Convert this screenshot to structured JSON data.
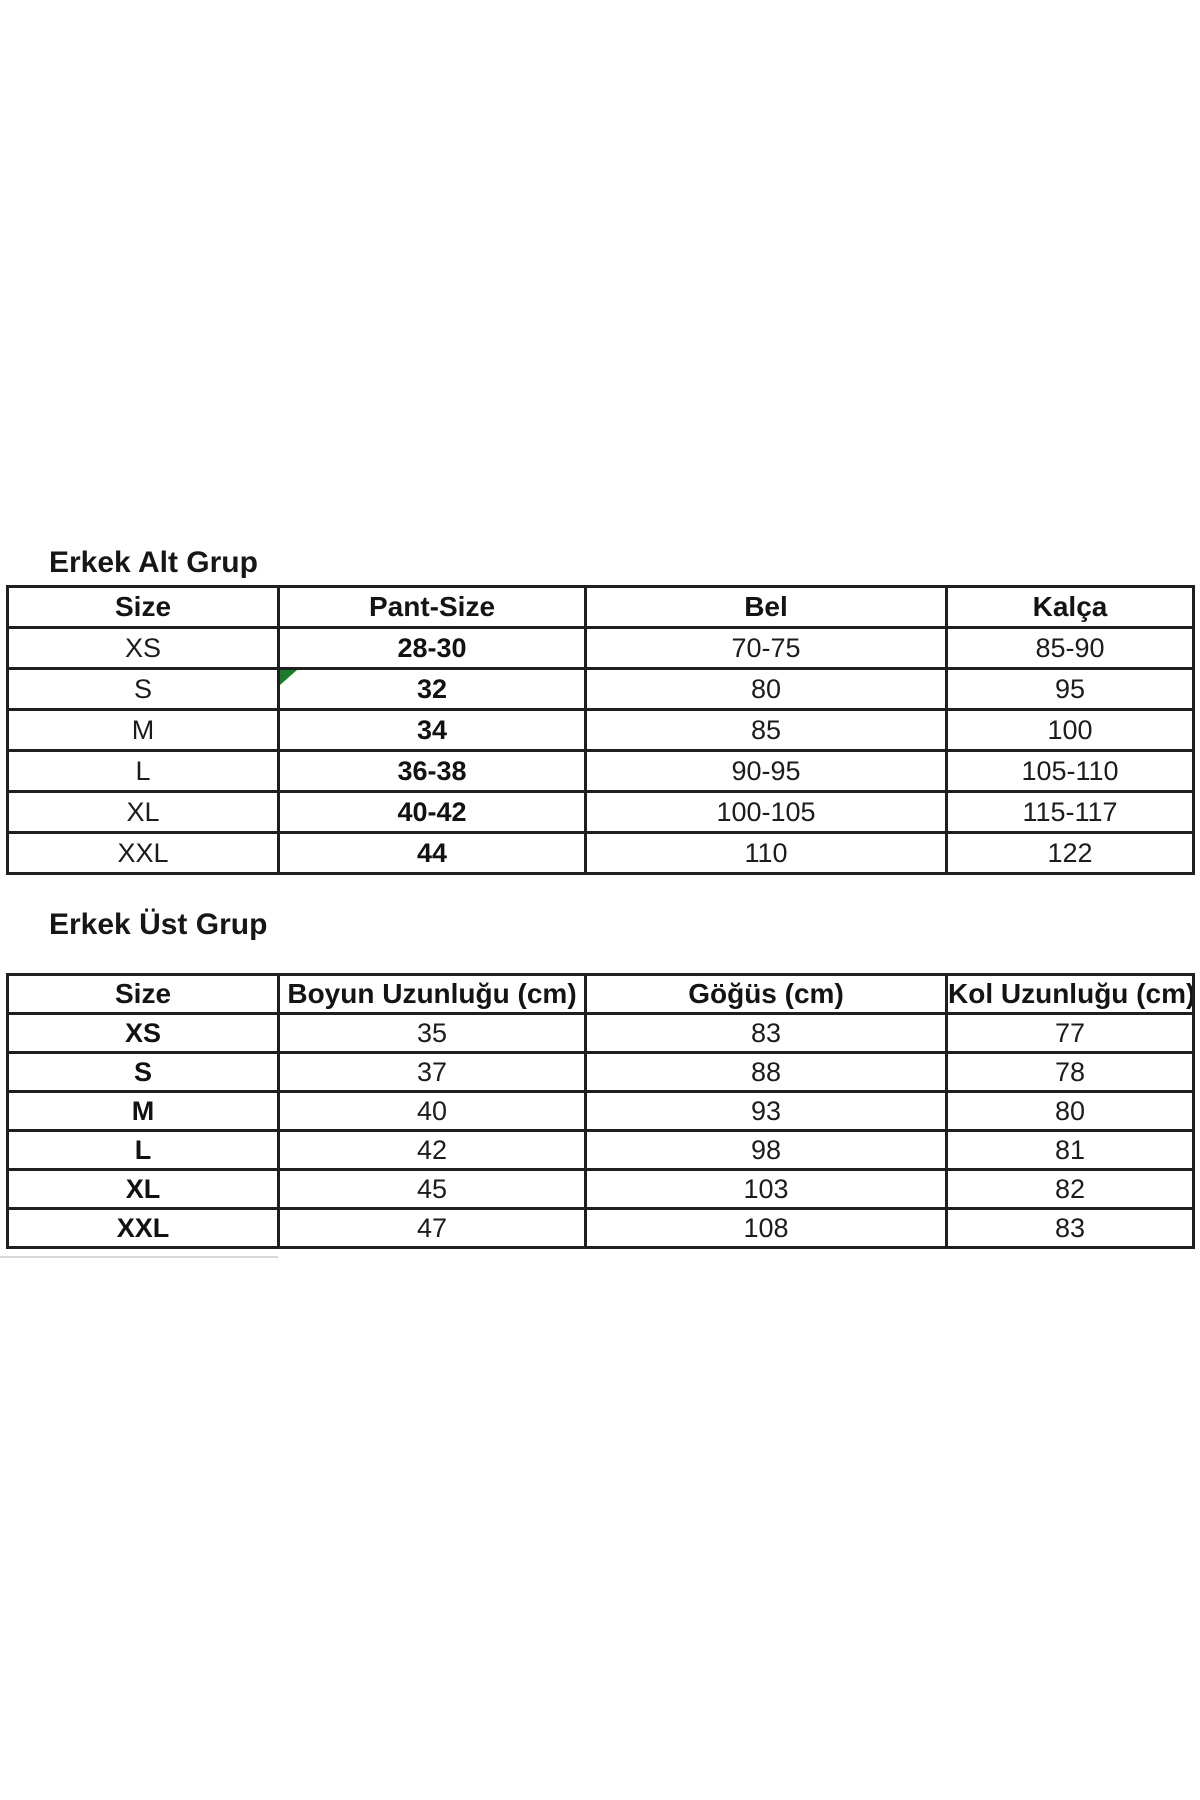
{
  "titles": {
    "alt": "Erkek Alt Grup",
    "ust": "Erkek Üst Grup"
  },
  "alt_table": {
    "headers": [
      "Size",
      "Pant-Size",
      "Bel",
      "Kalça"
    ],
    "rows": [
      [
        "XS",
        "28-30",
        "70-75",
        "85-90"
      ],
      [
        "S",
        "32",
        "80",
        "95"
      ],
      [
        "M",
        "34",
        "85",
        "100"
      ],
      [
        "L",
        "36-38",
        "90-95",
        "105-110"
      ],
      [
        "XL",
        "40-42",
        "100-105",
        "115-117"
      ],
      [
        "XXL",
        "44",
        "110",
        "122"
      ]
    ]
  },
  "ust_table": {
    "headers": [
      "Size",
      "Boyun Uzunluğu (cm)",
      "Göğüs (cm)",
      "Kol Uzunluğu (cm)"
    ],
    "rows": [
      [
        "XS",
        "35",
        "83",
        "77"
      ],
      [
        "S",
        "37",
        "88",
        "78"
      ],
      [
        "M",
        "40",
        "93",
        "80"
      ],
      [
        "L",
        "42",
        "98",
        "81"
      ],
      [
        "XL",
        "45",
        "103",
        "82"
      ],
      [
        "XXL",
        "47",
        "108",
        "83"
      ]
    ]
  },
  "colors": {
    "marker_green": "#1e7a2b",
    "border_black": "#1f1f1f",
    "artifact_gray": "#d9d9d9"
  }
}
